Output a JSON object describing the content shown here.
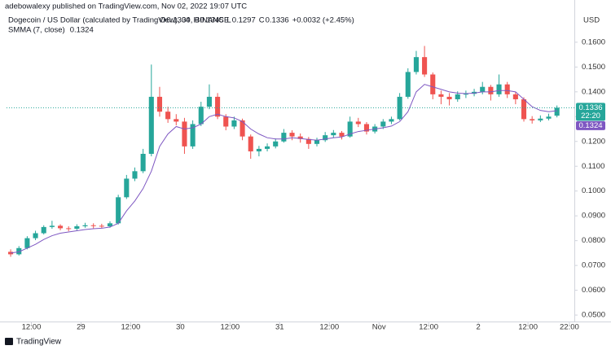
{
  "header": {
    "publisher": "adebowalexy published on TradingView.com, Nov 02, 2022 19:07 UTC",
    "ohlc": [
      {
        "label": "O",
        "value": 0.1304
      },
      {
        "label": "H",
        "value": 0.1345
      },
      {
        "label": "L",
        "value": 0.1297
      },
      {
        "label": "C",
        "value": 0.1336
      }
    ],
    "change": "+0.0032 (+2.45%)"
  },
  "footer": {
    "brand": "TradingView"
  },
  "chart_data": {
    "type": "candlestick",
    "title": "Dogecoin / US Dollar (calculated by TradingView), 30, BINANCE",
    "y_axis_label": "USD",
    "countdown": "22:20",
    "up_color": "#26a69a",
    "down_color": "#ef5350",
    "grid": false,
    "x": [
      1,
      3,
      5,
      7,
      9,
      11,
      13,
      15,
      17,
      19,
      21,
      23,
      25,
      27,
      29,
      31,
      33,
      35,
      37,
      39,
      41,
      43,
      45,
      47,
      49,
      51,
      53,
      55,
      57,
      59,
      61,
      63,
      65,
      67,
      69,
      71,
      73,
      75,
      77,
      79,
      81,
      83,
      85,
      87,
      89,
      91,
      93,
      95,
      97,
      99,
      101,
      103,
      105,
      107,
      109,
      111,
      113,
      115,
      117,
      119,
      121,
      123,
      125,
      127,
      129,
      131,
      133
    ],
    "open": [
      0.0755,
      0.0745,
      0.077,
      0.081,
      0.083,
      0.0855,
      0.086,
      0.085,
      0.0848,
      0.0858,
      0.0862,
      0.086,
      0.0858,
      0.087,
      0.0975,
      0.105,
      0.108,
      0.115,
      0.138,
      0.132,
      0.129,
      0.128,
      0.118,
      0.127,
      0.134,
      0.138,
      0.13,
      0.126,
      0.1285,
      0.122,
      0.116,
      0.117,
      0.118,
      0.12,
      0.1235,
      0.122,
      0.121,
      0.119,
      0.1205,
      0.1225,
      0.1235,
      0.122,
      0.128,
      0.127,
      0.124,
      0.126,
      0.128,
      0.129,
      0.138,
      0.148,
      0.154,
      0.147,
      0.139,
      0.138,
      0.137,
      0.139,
      0.1392,
      0.14,
      0.142,
      0.139,
      0.143,
      0.139,
      0.137,
      0.129,
      0.1285,
      0.1292,
      0.1304
    ],
    "high": [
      0.0765,
      0.0778,
      0.0818,
      0.084,
      0.0862,
      0.088,
      0.0866,
      0.0858,
      0.0866,
      0.0872,
      0.087,
      0.0868,
      0.0878,
      0.0985,
      0.1065,
      0.1095,
      0.117,
      0.151,
      0.142,
      0.134,
      0.131,
      0.1295,
      0.1285,
      0.136,
      0.143,
      0.1395,
      0.131,
      0.13,
      0.1292,
      0.1228,
      0.1182,
      0.1192,
      0.1212,
      0.125,
      0.1245,
      0.1232,
      0.1218,
      0.1215,
      0.1238,
      0.1246,
      0.1242,
      0.13,
      0.1295,
      0.1278,
      0.127,
      0.129,
      0.13,
      0.1395,
      0.1495,
      0.1565,
      0.1585,
      0.1478,
      0.1405,
      0.1395,
      0.1402,
      0.1405,
      0.1412,
      0.144,
      0.1428,
      0.147,
      0.144,
      0.1398,
      0.1378,
      0.1302,
      0.1305,
      0.1312,
      0.1345
    ],
    "low": [
      0.0735,
      0.074,
      0.0765,
      0.0802,
      0.0825,
      0.0848,
      0.0842,
      0.0838,
      0.0842,
      0.0852,
      0.085,
      0.085,
      0.0852,
      0.0865,
      0.0968,
      0.104,
      0.1072,
      0.114,
      0.13,
      0.1275,
      0.1265,
      0.115,
      0.117,
      0.1262,
      0.133,
      0.129,
      0.1245,
      0.125,
      0.1205,
      0.113,
      0.114,
      0.116,
      0.1172,
      0.1195,
      0.1205,
      0.1195,
      0.117,
      0.118,
      0.1198,
      0.1215,
      0.1208,
      0.1215,
      0.1258,
      0.1228,
      0.1232,
      0.125,
      0.127,
      0.1285,
      0.1372,
      0.147,
      0.146,
      0.137,
      0.135,
      0.1345,
      0.136,
      0.1375,
      0.1382,
      0.139,
      0.1365,
      0.138,
      0.1375,
      0.135,
      0.128,
      0.1272,
      0.1278,
      0.1285,
      0.1297
    ],
    "close": [
      0.0745,
      0.077,
      0.081,
      0.083,
      0.0855,
      0.086,
      0.085,
      0.0848,
      0.0858,
      0.0862,
      0.086,
      0.0858,
      0.087,
      0.0975,
      0.105,
      0.108,
      0.115,
      0.138,
      0.132,
      0.129,
      0.128,
      0.118,
      0.127,
      0.134,
      0.138,
      0.13,
      0.126,
      0.1285,
      0.122,
      0.116,
      0.117,
      0.118,
      0.12,
      0.1235,
      0.122,
      0.121,
      0.119,
      0.1205,
      0.1225,
      0.1235,
      0.122,
      0.128,
      0.127,
      0.124,
      0.126,
      0.128,
      0.129,
      0.138,
      0.148,
      0.154,
      0.147,
      0.139,
      0.138,
      0.137,
      0.139,
      0.1392,
      0.14,
      0.142,
      0.139,
      0.143,
      0.139,
      0.137,
      0.129,
      0.1285,
      0.1292,
      0.13,
      0.1336
    ],
    "series": [
      {
        "name": "SMMA (7, close)",
        "color": "#7e57c2",
        "values": [
          0.075,
          0.0755,
          0.077,
          0.0785,
          0.0805,
          0.082,
          0.083,
          0.0835,
          0.084,
          0.0845,
          0.0848,
          0.085,
          0.0855,
          0.087,
          0.092,
          0.096,
          0.101,
          0.108,
          0.118,
          0.123,
          0.126,
          0.125,
          0.1255,
          0.127,
          0.13,
          0.131,
          0.13,
          0.1295,
          0.128,
          0.125,
          0.123,
          0.1215,
          0.121,
          0.121,
          0.1215,
          0.1212,
          0.1208,
          0.1205,
          0.121,
          0.1215,
          0.1218,
          0.123,
          0.124,
          0.1245,
          0.125,
          0.1255,
          0.1262,
          0.128,
          0.132,
          0.14,
          0.143,
          0.142,
          0.141,
          0.14,
          0.1395,
          0.1393,
          0.1395,
          0.14,
          0.14,
          0.1405,
          0.1405,
          0.14,
          0.137,
          0.134,
          0.1325,
          0.132,
          0.1324
        ]
      }
    ],
    "xlim": [
      0,
      137.2
    ],
    "ylim": [
      0.0474,
      0.1744
    ],
    "xticks": [
      {
        "value": 6,
        "label": "12:00"
      },
      {
        "value": 18,
        "label": "29"
      },
      {
        "value": 30,
        "label": "12:00"
      },
      {
        "value": 42,
        "label": "30"
      },
      {
        "value": 54,
        "label": "12:00"
      },
      {
        "value": 66,
        "label": "31"
      },
      {
        "value": 78,
        "label": "12:00"
      },
      {
        "value": 90,
        "label": "Nov"
      },
      {
        "value": 102,
        "label": "12:00"
      },
      {
        "value": 114,
        "label": "2"
      },
      {
        "value": 126,
        "label": "12:00"
      },
      {
        "value": 136,
        "label": "22:00"
      }
    ],
    "yticks": [
      {
        "value": 0.05,
        "label": "0.0500"
      },
      {
        "value": 0.06,
        "label": "0.0600"
      },
      {
        "value": 0.07,
        "label": "0.0700"
      },
      {
        "value": 0.08,
        "label": "0.0800"
      },
      {
        "value": 0.09,
        "label": "0.0900"
      },
      {
        "value": 0.1,
        "label": "0.1000"
      },
      {
        "value": 0.11,
        "label": "0.1100"
      },
      {
        "value": 0.12,
        "label": "0.1200"
      },
      {
        "value": 0.13,
        "label": "0.1300"
      },
      {
        "value": 0.14,
        "label": "0.1400"
      },
      {
        "value": 0.15,
        "label": "0.1500"
      },
      {
        "value": 0.16,
        "label": "0.1600"
      }
    ]
  }
}
